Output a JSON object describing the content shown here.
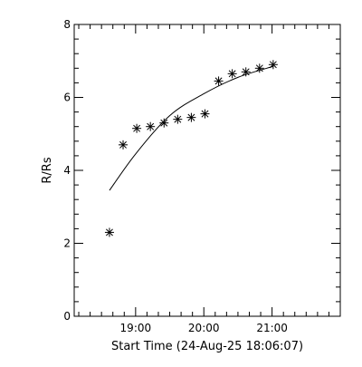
{
  "chart_data": {
    "type": "scatter",
    "xlabel": "Start Time (24-Aug-25 18:06:07)",
    "ylabel": "R/Rs",
    "ylim": [
      0,
      8
    ],
    "xlim": [
      "18:06",
      "22:00"
    ],
    "grid": false,
    "x_tick_labels": [
      "19:00",
      "20:00",
      "21:00"
    ],
    "y_tick_labels": [
      "0",
      "2",
      "4",
      "6",
      "8"
    ],
    "series": [
      {
        "marker": "asterisk",
        "x": [
          "18:37",
          "18:49",
          "19:01",
          "19:13",
          "19:25",
          "19:37",
          "19:49",
          "20:01",
          "20:13",
          "20:25",
          "20:37",
          "20:49",
          "21:01"
        ],
        "y": [
          2.3,
          4.7,
          5.15,
          5.2,
          5.3,
          5.4,
          5.45,
          5.55,
          6.45,
          6.65,
          6.7,
          6.8,
          6.9
        ]
      },
      {
        "style": "line",
        "x": [
          "18:37",
          "19:00",
          "19:30",
          "20:00",
          "20:30",
          "21:01"
        ],
        "y": [
          3.45,
          4.45,
          5.5,
          6.1,
          6.55,
          6.85
        ]
      }
    ]
  }
}
